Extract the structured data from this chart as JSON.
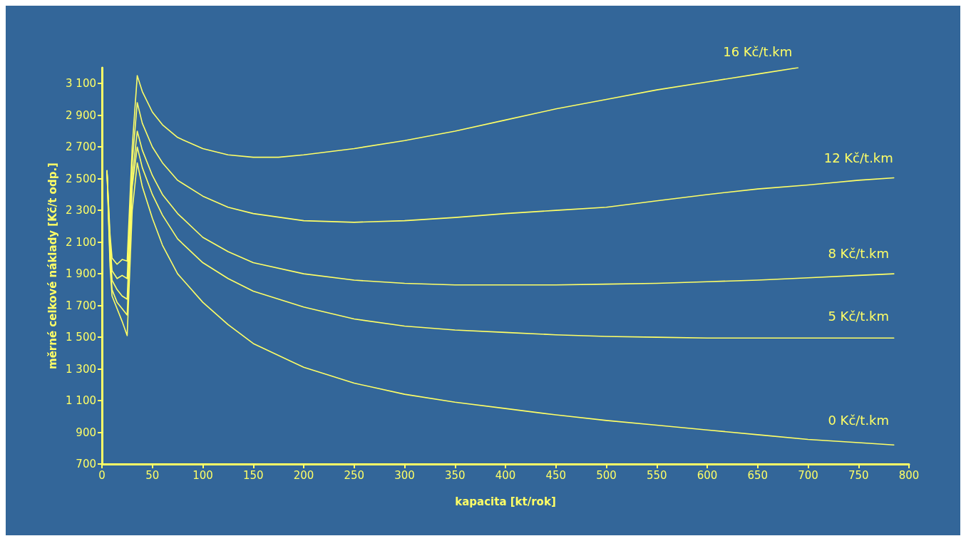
{
  "chart_data": {
    "type": "line",
    "xlabel": "kapacita [kt/rok]",
    "ylabel": "měrné celkové náklady [Kč/t odp.]",
    "xlim": [
      0,
      800
    ],
    "xticks": [
      0,
      50,
      100,
      150,
      200,
      250,
      300,
      350,
      400,
      450,
      500,
      550,
      600,
      650,
      700,
      750,
      800
    ],
    "ylim": [
      700,
      3200
    ],
    "yticks": [
      700,
      900,
      {
        "value": 1100,
        "label": "1 100"
      },
      {
        "value": 1300,
        "label": "1 300"
      },
      {
        "value": 1500,
        "label": "1 500"
      },
      {
        "value": 1700,
        "label": "1 700"
      },
      {
        "value": 1900,
        "label": "1 900"
      },
      {
        "value": 2100,
        "label": "2 100"
      },
      {
        "value": 2300,
        "label": "2 300"
      },
      {
        "value": 2500,
        "label": "2 500"
      },
      {
        "value": 2700,
        "label": "2 700"
      },
      {
        "value": 2900,
        "label": "2 900"
      },
      {
        "value": 3100,
        "label": "3 100"
      }
    ],
    "grid": false,
    "legend": false,
    "marker": "none",
    "line_style": "solid",
    "series": [
      {
        "name": "16 Kč/t.km",
        "color": "#ffff66",
        "x": [
          5,
          8,
          10,
          15,
          20,
          25,
          30,
          35,
          40,
          50,
          60,
          75,
          100,
          125,
          150,
          175,
          200,
          250,
          300,
          350,
          400,
          450,
          500,
          550,
          600,
          650,
          690
        ],
        "values": [
          2550,
          2150,
          2000,
          1960,
          1990,
          1980,
          2700,
          3150,
          3050,
          2920,
          2840,
          2760,
          2690,
          2650,
          2635,
          2635,
          2650,
          2690,
          2740,
          2800,
          2870,
          2940,
          3000,
          3060,
          3110,
          3160,
          3200
        ]
      },
      {
        "name": "12 Kč/t.km",
        "color": "#ffff66",
        "x": [
          5,
          8,
          10,
          15,
          20,
          25,
          30,
          35,
          40,
          50,
          60,
          75,
          100,
          125,
          150,
          200,
          250,
          300,
          350,
          400,
          450,
          500,
          550,
          600,
          650,
          700,
          750,
          785
        ],
        "values": [
          2550,
          2100,
          1920,
          1870,
          1890,
          1870,
          2600,
          2980,
          2850,
          2700,
          2600,
          2490,
          2390,
          2320,
          2280,
          2235,
          2225,
          2235,
          2255,
          2280,
          2300,
          2320,
          2360,
          2400,
          2435,
          2460,
          2490,
          2505
        ]
      },
      {
        "name": "8 Kč/t.km",
        "color": "#ffff66",
        "x": [
          5,
          8,
          10,
          15,
          20,
          25,
          30,
          35,
          40,
          50,
          60,
          75,
          100,
          125,
          150,
          200,
          250,
          300,
          350,
          400,
          450,
          500,
          550,
          600,
          650,
          700,
          750,
          785
        ],
        "values": [
          2550,
          2050,
          1860,
          1800,
          1760,
          1740,
          2500,
          2800,
          2680,
          2520,
          2400,
          2280,
          2130,
          2040,
          1970,
          1900,
          1860,
          1840,
          1830,
          1830,
          1830,
          1835,
          1840,
          1850,
          1860,
          1875,
          1890,
          1900
        ]
      },
      {
        "name": "5 Kč/t.km",
        "color": "#ffff66",
        "x": [
          5,
          8,
          10,
          15,
          20,
          25,
          30,
          35,
          40,
          50,
          60,
          75,
          100,
          125,
          150,
          200,
          250,
          300,
          350,
          400,
          450,
          500,
          550,
          600,
          650,
          700,
          750,
          785
        ],
        "values": [
          2550,
          2000,
          1800,
          1720,
          1680,
          1640,
          2450,
          2700,
          2570,
          2400,
          2270,
          2120,
          1970,
          1870,
          1790,
          1690,
          1615,
          1570,
          1545,
          1530,
          1515,
          1505,
          1500,
          1495,
          1495,
          1495,
          1495,
          1495
        ]
      },
      {
        "name": "0 Kč/t.km",
        "color": "#ffff66",
        "x": [
          5,
          8,
          10,
          15,
          20,
          25,
          30,
          35,
          40,
          50,
          60,
          75,
          100,
          125,
          150,
          200,
          250,
          300,
          350,
          400,
          450,
          500,
          550,
          600,
          650,
          700,
          750,
          785
        ],
        "values": [
          2550,
          1950,
          1760,
          1680,
          1600,
          1510,
          2300,
          2600,
          2450,
          2250,
          2080,
          1900,
          1720,
          1580,
          1460,
          1310,
          1210,
          1140,
          1090,
          1050,
          1010,
          975,
          945,
          915,
          885,
          855,
          835,
          820
        ]
      }
    ]
  }
}
